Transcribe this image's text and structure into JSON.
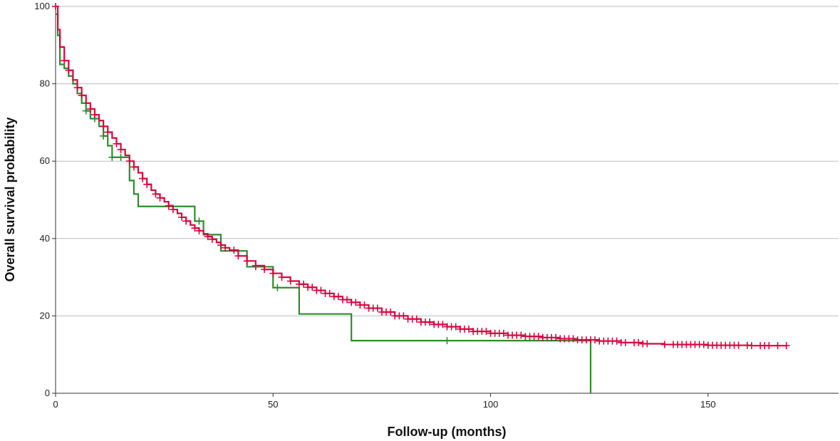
{
  "chart_data": {
    "type": "line",
    "title": "",
    "xlabel": "Follow-up (months)",
    "ylabel": "Overall survival probability",
    "xlim": [
      0,
      180
    ],
    "ylim": [
      0,
      100
    ],
    "xticks": [
      0,
      50,
      100,
      150
    ],
    "yticks": [
      0,
      20,
      40,
      60,
      80,
      100
    ],
    "grid": "horizontal",
    "legend": "none",
    "series": [
      {
        "color": "#d6063f",
        "x": [
          0,
          0.5,
          1,
          2,
          3,
          4,
          5,
          6,
          7,
          8,
          9,
          10,
          11,
          12,
          13,
          14,
          15,
          16,
          17,
          18,
          19,
          20,
          21,
          22,
          23,
          24,
          25,
          26,
          27,
          28,
          29,
          30,
          31,
          32,
          33,
          34,
          35,
          36,
          37,
          38,
          39,
          40,
          42,
          44,
          46,
          48,
          50,
          52,
          54,
          56,
          58,
          60,
          62,
          64,
          66,
          68,
          70,
          72,
          75,
          78,
          81,
          84,
          87,
          90,
          93,
          96,
          100,
          104,
          108,
          112,
          116,
          120,
          125,
          130,
          135,
          140,
          150,
          160,
          168
        ],
        "y": [
          100,
          94,
          89.5,
          86,
          83.5,
          81,
          79,
          77,
          75,
          73.5,
          72,
          70.5,
          69,
          67.5,
          66,
          64.5,
          63,
          61.5,
          60,
          58.5,
          57,
          55.5,
          54,
          52.5,
          51.5,
          50.5,
          49.5,
          48.5,
          47.5,
          46.5,
          45.5,
          44.5,
          43.5,
          42.7,
          42,
          41.2,
          40.5,
          39.8,
          39,
          38.3,
          37.6,
          37,
          35.5,
          34.2,
          33,
          32,
          31,
          30,
          29,
          28.2,
          27.4,
          26.6,
          25.8,
          25,
          24.2,
          23.5,
          22.8,
          22,
          21,
          20,
          19.2,
          18.4,
          17.8,
          17.2,
          16.6,
          16,
          15.5,
          15,
          14.7,
          14.4,
          14.1,
          13.8,
          13.5,
          13.1,
          12.8,
          12.6,
          12.4,
          12.3,
          12.3
        ],
        "censor_x": [
          0,
          2,
          3,
          5,
          6,
          8,
          9,
          11,
          12,
          14,
          15,
          17,
          18,
          20,
          21,
          23,
          24,
          26,
          27,
          29,
          30,
          32,
          33,
          35,
          36,
          38,
          39,
          41,
          42,
          44,
          46,
          48,
          50,
          52,
          54,
          56,
          57,
          58,
          59,
          60,
          61,
          62,
          63,
          64,
          65,
          66,
          67,
          68,
          69,
          70,
          71,
          72,
          73,
          74,
          75,
          76,
          77,
          78,
          79,
          80,
          81,
          82,
          83,
          84,
          85,
          86,
          87,
          88,
          89,
          90,
          91,
          92,
          93,
          94,
          95,
          96,
          97,
          98,
          99,
          100,
          101,
          102,
          103,
          104,
          105,
          106,
          107,
          108,
          109,
          110,
          111,
          112,
          113,
          114,
          115,
          116,
          117,
          118,
          119,
          120,
          121,
          122,
          123,
          124,
          125,
          126,
          127,
          128,
          129,
          130,
          131,
          133,
          134,
          135,
          136,
          140,
          142,
          143,
          144,
          145,
          146,
          147,
          148,
          149,
          150,
          151,
          152,
          153,
          154,
          155,
          156,
          157,
          159,
          160,
          162,
          163,
          164,
          166,
          168
        ]
      },
      {
        "color": "#2e8b2e",
        "x": [
          0,
          0.5,
          1,
          2,
          3,
          4,
          5,
          6,
          7,
          8,
          10,
          11,
          12,
          13,
          16,
          17,
          18,
          19,
          25,
          32,
          34,
          38,
          44,
          50,
          56,
          68,
          75,
          90,
          123
        ],
        "y": [
          98,
          92.5,
          85,
          84,
          82,
          80,
          77.5,
          75,
          73,
          71,
          69,
          66.5,
          64,
          61,
          61,
          55,
          51.5,
          48.3,
          48.3,
          44.5,
          41,
          36.8,
          32.7,
          27.3,
          20.5,
          13.6,
          13.6,
          13.6,
          0
        ],
        "censor_x": [
          7,
          9,
          11,
          13,
          15,
          26,
          33,
          46,
          51,
          90
        ]
      }
    ]
  }
}
